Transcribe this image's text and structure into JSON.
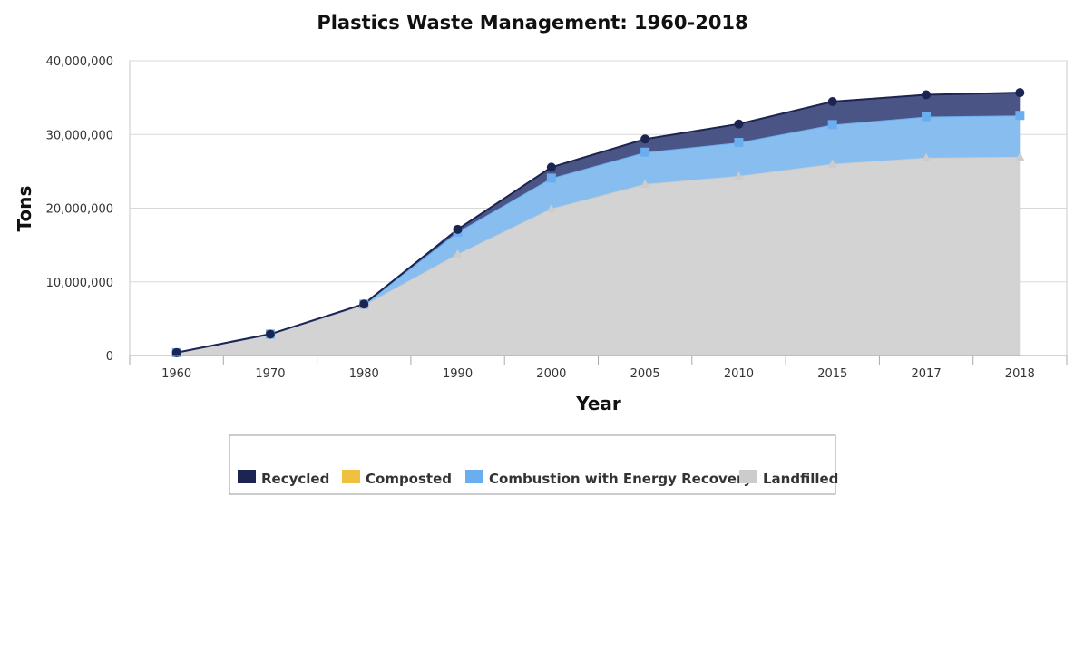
{
  "chart_data": {
    "type": "area",
    "stacked": true,
    "title": "Plastics Waste Management: 1960-2018",
    "xlabel": "Year",
    "ylabel": "Tons",
    "ylim": [
      0,
      40000000
    ],
    "yticks": [
      0,
      10000000,
      20000000,
      30000000,
      40000000
    ],
    "ytick_labels": [
      "0",
      "10,000,000",
      "20,000,000",
      "30,000,000",
      "40,000,000"
    ],
    "categories": [
      "1960",
      "1970",
      "1980",
      "1990",
      "2000",
      "2005",
      "2010",
      "2015",
      "2017",
      "2018"
    ],
    "grid": true,
    "legend_position": "bottom-center",
    "series": [
      {
        "name": "Landfilled",
        "color": "#cccccc",
        "fill": "#d3d3d3",
        "marker": "triangle",
        "values": [
          390000,
          2900000,
          6830000,
          13780000,
          19950000,
          23270000,
          24370000,
          26010000,
          26840000,
          26970000
        ]
      },
      {
        "name": "Combustion with Energy Recovery",
        "color": "#6aaef0",
        "fill": "#88bdf0",
        "marker": "square",
        "values": [
          0,
          0,
          140000,
          2980000,
          4120000,
          4330000,
          4550000,
          5330000,
          5590000,
          5620000
        ]
      },
      {
        "name": "Composted",
        "color": "#f0c040",
        "fill": "#f0c040",
        "marker": "none",
        "values": [
          0,
          0,
          0,
          0,
          0,
          0,
          0,
          0,
          0,
          0
        ]
      },
      {
        "name": "Recycled",
        "color": "#1c2552",
        "fill": "#4a5585",
        "marker": "circle",
        "values": [
          0,
          0,
          20000,
          370000,
          1480000,
          1780000,
          2500000,
          3120000,
          2960000,
          3090000
        ]
      }
    ],
    "legend_order": [
      "Recycled",
      "Composted",
      "Combustion with Energy Recovery",
      "Landfilled"
    ]
  }
}
